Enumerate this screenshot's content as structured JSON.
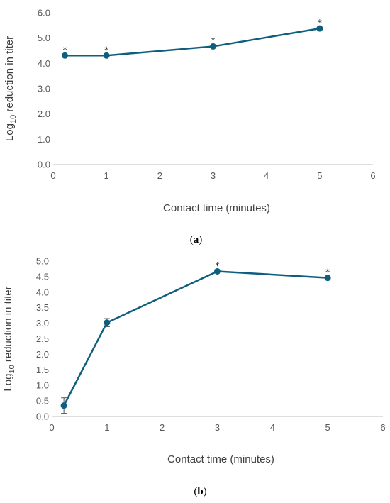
{
  "chart_data": [
    {
      "type": "line",
      "panel_label": "a",
      "xlabel": "Contact time (minutes)",
      "ylabel": "Log10 reduction in titer",
      "xlim": [
        0,
        6
      ],
      "ylim": [
        0,
        6
      ],
      "xticks": [
        "0",
        "1",
        "2",
        "3",
        "4",
        "5",
        "6"
      ],
      "yticks": [
        "0.0",
        "1.0",
        "2.0",
        "3.0",
        "4.0",
        "5.0",
        "6.0"
      ],
      "grid": false,
      "color": "#0e5f7e",
      "x": [
        0.22,
        1,
        3,
        5
      ],
      "y": [
        4.31,
        4.31,
        4.67,
        5.38
      ],
      "error": [
        0,
        0,
        0,
        0
      ],
      "significance": [
        "*",
        "*",
        "*",
        "*"
      ]
    },
    {
      "type": "line",
      "panel_label": "b",
      "xlabel": "Contact time (minutes)",
      "ylabel": "Log10 reduction in titer",
      "xlim": [
        0,
        6
      ],
      "ylim": [
        0,
        5
      ],
      "xticks": [
        "0",
        "1",
        "2",
        "3",
        "4",
        "5",
        "6"
      ],
      "yticks": [
        "0.0",
        "0.5",
        "1.0",
        "1.5",
        "2.0",
        "2.5",
        "3.0",
        "3.5",
        "4.0",
        "4.5",
        "5.0"
      ],
      "grid": false,
      "color": "#0e5f7e",
      "x": [
        0.22,
        1,
        3,
        5
      ],
      "y": [
        0.35,
        3.02,
        4.67,
        4.46
      ],
      "error": [
        0.25,
        0.13,
        0,
        0
      ],
      "significance": [
        "",
        "",
        "*",
        "*"
      ]
    }
  ]
}
